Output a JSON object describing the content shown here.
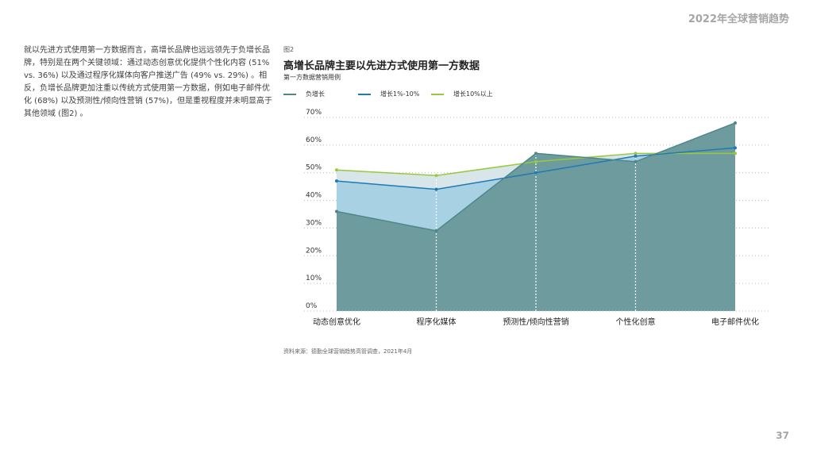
{
  "header": {
    "title": "2022年全球营销趋势"
  },
  "body_text": "就以先进方式使用第一方数据而言，高增长品牌也远远领先于负增长品牌，特别是在两个关键领域：通过动态创意优化提供个性化内容 (51% vs. 36%) 以及通过程序化媒体向客户推送广告 (49% vs. 29%) 。相反，负增长品牌更加注重以传统方式使用第一方数据，例如电子邮件优化 (68%) 以及预测性/倾向性营销 (57%)，但是重视程度并未明显高于其他领域 (图2) 。",
  "figure": {
    "label": "图2",
    "title": "高增长品牌主要以先进方式使用第一方数据",
    "subtitle": "第一方数据营销用例"
  },
  "chart_data": {
    "type": "area",
    "categories": [
      "动态创意优化",
      "程序化媒体",
      "预测性/倾向性营销",
      "个性化创意",
      "电子邮件优化"
    ],
    "series": [
      {
        "name": "负增长",
        "values": [
          36,
          29,
          57,
          54,
          68
        ],
        "color": "#4f8788",
        "fill": "#6e9c9e",
        "style": "area"
      },
      {
        "name": "增长1%-10%",
        "values": [
          47,
          44,
          50,
          56,
          59
        ],
        "color": "#1d7ab5",
        "fill": "#a8d1e4",
        "style": "area"
      },
      {
        "name": "增长10%以上",
        "values": [
          51,
          49,
          54,
          57,
          57
        ],
        "color": "#97c93d",
        "fill": "#d8e6e9",
        "style": "area"
      }
    ],
    "ylim": [
      0,
      70
    ],
    "yticks": [
      "0%",
      "10%",
      "20%",
      "30%",
      "40%",
      "50%",
      "60%",
      "70%"
    ],
    "grid": true,
    "legend_position": "top-left"
  },
  "source": "资料来源：德勤全球营销趋势高管调查，2021年4月",
  "page_number": "37"
}
